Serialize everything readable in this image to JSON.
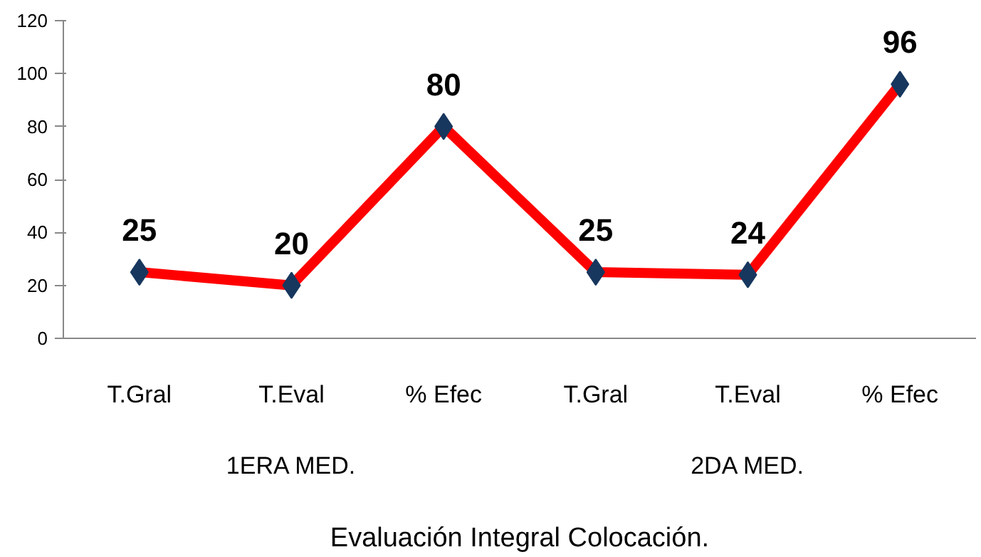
{
  "chart_data": {
    "type": "line",
    "xlabel": "Evaluación Integral Colocación.",
    "categories": [
      "T.Gral",
      "T.Eval",
      "% Efec",
      "T.Gral",
      "T.Eval",
      "% Efec"
    ],
    "series": [
      {
        "color": "#ff0000",
        "values": [
          25,
          20,
          80,
          25,
          24,
          96
        ]
      }
    ],
    "marker": "diamond",
    "data_labels": true,
    "ylim": [
      0,
      120
    ],
    "yticks": [
      0,
      20,
      40,
      60,
      80,
      100,
      120
    ],
    "grid": false,
    "annotations": [
      "1ERA MED.",
      "2DA MED."
    ]
  }
}
